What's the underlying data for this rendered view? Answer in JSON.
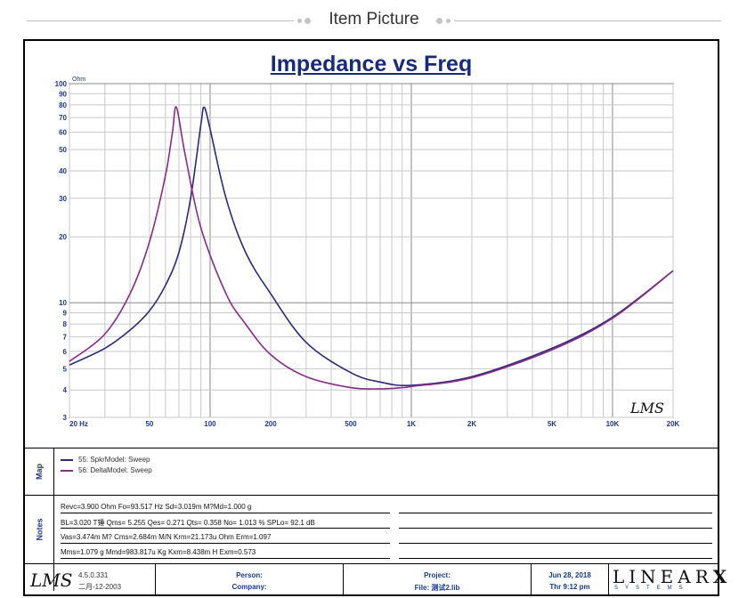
{
  "header": {
    "title": "Item Picture"
  },
  "chart_data": {
    "type": "line",
    "title": "Impedance vs Freq",
    "ylabel": "Ohm",
    "xscale": "log",
    "yscale": "log",
    "xlim": [
      20,
      20000
    ],
    "ylim": [
      3,
      100
    ],
    "grid": true,
    "x_ticks": [
      {
        "v": 20,
        "label": "20 Hz"
      },
      {
        "v": 50,
        "label": "50"
      },
      {
        "v": 100,
        "label": "100"
      },
      {
        "v": 200,
        "label": "200"
      },
      {
        "v": 500,
        "label": "500"
      },
      {
        "v": 1000,
        "label": "1K"
      },
      {
        "v": 2000,
        "label": "2K"
      },
      {
        "v": 5000,
        "label": "5K"
      },
      {
        "v": 10000,
        "label": "10K"
      },
      {
        "v": 20000,
        "label": "20K"
      }
    ],
    "y_ticks": [
      {
        "v": 3,
        "label": "3"
      },
      {
        "v": 4,
        "label": "4"
      },
      {
        "v": 5,
        "label": "5"
      },
      {
        "v": 6,
        "label": "6"
      },
      {
        "v": 7,
        "label": "7"
      },
      {
        "v": 8,
        "label": "8"
      },
      {
        "v": 9,
        "label": "9"
      },
      {
        "v": 10,
        "label": "10"
      },
      {
        "v": 20,
        "label": "20"
      },
      {
        "v": 30,
        "label": "30"
      },
      {
        "v": 40,
        "label": "40"
      },
      {
        "v": 50,
        "label": "50"
      },
      {
        "v": 60,
        "label": "60"
      },
      {
        "v": 70,
        "label": "70"
      },
      {
        "v": 80,
        "label": "80"
      },
      {
        "v": 90,
        "label": "90"
      },
      {
        "v": 100,
        "label": "100"
      }
    ],
    "series": [
      {
        "name": "55: SpkrModel: Sweep",
        "color": "#2a2a78",
        "x": [
          20,
          30,
          40,
          50,
          60,
          70,
          80,
          90,
          93.5,
          100,
          120,
          150,
          200,
          300,
          500,
          700,
          1000,
          2000,
          5000,
          10000,
          20000
        ],
        "y": [
          5.2,
          6.2,
          7.5,
          9.2,
          12,
          17,
          30,
          65,
          78,
          62,
          30,
          17,
          11,
          6.6,
          4.8,
          4.35,
          4.2,
          4.6,
          6.2,
          8.6,
          14
        ]
      },
      {
        "name": "56: DeltaModel: Sweep",
        "color": "#8a2a8a",
        "x": [
          20,
          30,
          40,
          50,
          60,
          65,
          68,
          75,
          90,
          120,
          150,
          200,
          300,
          500,
          700,
          900,
          1000,
          2000,
          5000,
          10000,
          20000
        ],
        "y": [
          5.4,
          7.2,
          11,
          19,
          38,
          60,
          78,
          48,
          22,
          11,
          8,
          5.8,
          4.6,
          4.1,
          4.05,
          4.1,
          4.15,
          4.55,
          6.1,
          8.5,
          14
        ]
      }
    ],
    "watermark": "LMS"
  },
  "map": {
    "label": "Map",
    "items": [
      {
        "text": "55: SpkrModel: Sweep",
        "color": "#2a2a78"
      },
      {
        "text": "56: DeltaModel: Sweep",
        "color": "#8a2a8a"
      }
    ]
  },
  "notes": {
    "label": "Notes",
    "lines": [
      "Revc=3.900 Ohm  Fo=93.517 Hz  Sd=3.019m M?Md=1.000 g",
      "BL=3.020 T锤  Qms= 5.255  Qes= 0.271  Qts= 0.358  No= 1.013 %  SPLo= 92.1 dB",
      "Vas=3.474m M? Cms=2.684m M/N  Krm=21.173u Ohm  Erm=1.097",
      "Mms=1.079 g  Mmd=983.817u Kg  Kxm=8.438m H  Exm=0.573"
    ]
  },
  "footer": {
    "logo": "LMS",
    "version": "4.5.0.331",
    "date": "二月-12-2003",
    "person_label": "Person:",
    "company_label": "Company:",
    "project_label": "Project:",
    "file_label": "File: 测试2.lib",
    "run_date": "Jun 28, 2018",
    "run_time": "Thr  9:12 pm",
    "brand": "LINEAR",
    "brand_x": "X",
    "brand_sub": "SYSTEMS"
  }
}
